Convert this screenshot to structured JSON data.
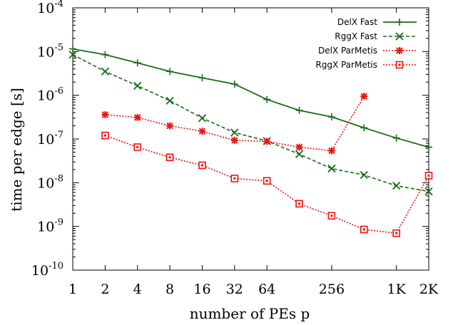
{
  "chart_data": {
    "type": "line",
    "xlabel": "number of PEs p",
    "ylabel": "time per edge [s]",
    "x_scale": "log2",
    "y_scale": "log10",
    "xlim": [
      1,
      2048
    ],
    "ylim": [
      1e-10,
      0.0001
    ],
    "x_ticks": [
      {
        "value": 1,
        "label": "1"
      },
      {
        "value": 2,
        "label": "2"
      },
      {
        "value": 4,
        "label": "4"
      },
      {
        "value": 8,
        "label": "8"
      },
      {
        "value": 16,
        "label": "16"
      },
      {
        "value": 32,
        "label": "32"
      },
      {
        "value": 64,
        "label": "64"
      },
      {
        "value": 256,
        "label": "256"
      },
      {
        "value": 1024,
        "label": "1K"
      },
      {
        "value": 2048,
        "label": "2K"
      }
    ],
    "y_ticks": [
      {
        "value": 1e-10,
        "base": "10",
        "exp": "-10"
      },
      {
        "value": 1e-09,
        "base": "10",
        "exp": "-9"
      },
      {
        "value": 1e-08,
        "base": "10",
        "exp": "-8"
      },
      {
        "value": 1e-07,
        "base": "10",
        "exp": "-7"
      },
      {
        "value": 1e-06,
        "base": "10",
        "exp": "-6"
      },
      {
        "value": 1e-05,
        "base": "10",
        "exp": "-5"
      },
      {
        "value": 0.0001,
        "base": "10",
        "exp": "-4"
      }
    ],
    "legend_position": "top-right",
    "grid": false,
    "series": [
      {
        "name": "DelX Fast",
        "color": "#1a6b1a",
        "dash": "solid",
        "marker": "plus",
        "x": [
          1,
          2,
          4,
          8,
          16,
          32,
          64,
          128,
          256,
          512,
          1024,
          2048
        ],
        "y": [
          1.15e-05,
          8.5e-06,
          5.5e-06,
          3.5e-06,
          2.5e-06,
          1.8e-06,
          8e-07,
          4.5e-07,
          3.2e-07,
          1.8e-07,
          1.05e-07,
          6.5e-08
        ]
      },
      {
        "name": "RggX Fast",
        "color": "#1a6b1a",
        "dash": "dashed",
        "marker": "cross",
        "x": [
          1,
          2,
          4,
          8,
          16,
          32,
          64,
          128,
          256,
          512,
          1024,
          2048
        ],
        "y": [
          8.5e-06,
          3.5e-06,
          1.65e-06,
          7.5e-07,
          3e-07,
          1.4e-07,
          9e-08,
          4.5e-08,
          2.1e-08,
          1.5e-08,
          8.5e-09,
          6.3e-09
        ]
      },
      {
        "name": "DelX ParMetis",
        "color": "#ee1111",
        "dash": "dotted",
        "marker": "star",
        "x": [
          2,
          4,
          8,
          16,
          32,
          64,
          128,
          256,
          512
        ],
        "y": [
          3.6e-07,
          3.1e-07,
          2e-07,
          1.5e-07,
          9.3e-08,
          8.8e-08,
          6.5e-08,
          5.4e-08,
          9.5e-07
        ]
      },
      {
        "name": "RggX ParMetis",
        "color": "#ee1111",
        "dash": "dotted",
        "marker": "square",
        "x": [
          2,
          4,
          8,
          16,
          32,
          64,
          128,
          256,
          512,
          1024,
          2048
        ],
        "y": [
          1.2e-07,
          6.5e-08,
          3.8e-08,
          2.5e-08,
          1.25e-08,
          1.1e-08,
          3.3e-09,
          1.75e-09,
          8.5e-10,
          7e-10,
          1.45e-08
        ]
      }
    ]
  }
}
